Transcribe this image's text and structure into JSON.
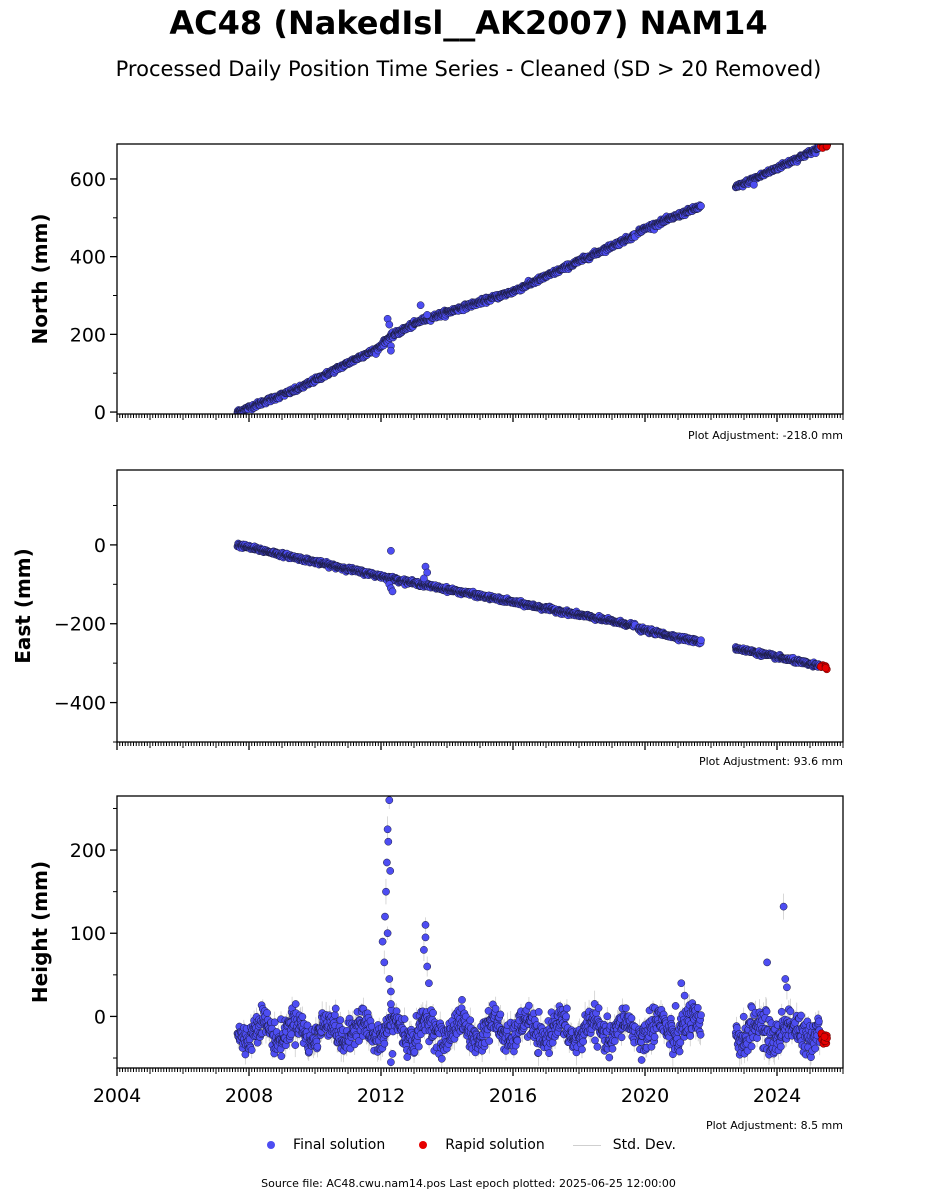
{
  "header": {
    "title": "AC48 (NakedIsl__AK2007) NAM14",
    "subtitle": "Processed Daily Position Time Series - Cleaned (SD > 20 Removed)"
  },
  "adjustments": {
    "north": "Plot Adjustment: -218.0 mm",
    "east": "Plot Adjustment: 93.6 mm",
    "height": "Plot Adjustment: 8.5 mm"
  },
  "legend": {
    "final": "Final solution",
    "rapid": "Rapid solution",
    "std": "Std. Dev."
  },
  "footer": "Source file: AC48.cwu.nam14.pos  Last epoch plotted: 2025-06-25 12:00:00",
  "colors": {
    "final": "#4d4df2",
    "final_edge": "#1a1a3a",
    "rapid": "#e60000",
    "std": "#cfcfcf",
    "axis": "#000000"
  },
  "chart_data": [
    {
      "type": "scatter",
      "ylabel": "North (mm)",
      "xlim": [
        2004.0,
        2026.0
      ],
      "ylim": [
        -5,
        690
      ],
      "yticks": [
        0,
        200,
        400,
        600
      ],
      "xticklabels_shown": false,
      "series": [
        {
          "name": "Final solution",
          "segments": [
            {
              "x": [
                2007.65,
                2009.5,
                2011.5,
                2011.85,
                2012.3,
                2013.2,
                2016,
                2019.7
              ],
              "y": [
                0,
                60,
                148,
                160,
                195,
                235,
                310,
                455
              ]
            },
            {
              "x": [
                2019.8,
                2021.7
              ],
              "y": [
                465,
                530
              ]
            },
            {
              "x": [
                2022.75,
                2025.3
              ],
              "y": [
                578,
                680
              ]
            }
          ]
        },
        {
          "name": "Rapid solution",
          "x": [
            2025.35,
            2025.48
          ],
          "y": [
            683,
            688
          ]
        }
      ],
      "outliers": {
        "x": [
          2012.2,
          2012.25,
          2012.3,
          2012.3,
          2013.2,
          2013.4,
          2023.3
        ],
        "y": [
          240,
          225,
          170,
          158,
          275,
          250,
          585
        ]
      }
    },
    {
      "type": "scatter",
      "ylabel": "East (mm)",
      "xlim": [
        2004.0,
        2026.0
      ],
      "ylim": [
        -500,
        190
      ],
      "yticks": [
        0,
        -200,
        -400
      ],
      "yticklabels": [
        "0",
        "−200",
        "−400"
      ],
      "xticklabels_shown": false,
      "series": [
        {
          "name": "Final solution",
          "segments": [
            {
              "x": [
                2007.65,
                2012.3,
                2019.7
              ],
              "y": [
                0,
                -85,
                -205
              ]
            },
            {
              "x": [
                2019.8,
                2021.7
              ],
              "y": [
                -213,
                -247
              ]
            },
            {
              "x": [
                2022.75,
                2025.3
              ],
              "y": [
                -262,
                -308
              ]
            }
          ]
        },
        {
          "name": "Rapid solution",
          "x": [
            2025.35,
            2025.48
          ],
          "y": [
            -309,
            -311
          ]
        }
      ],
      "outliers": {
        "x": [
          2012.3,
          2012.25,
          2012.3,
          2012.35,
          2013.35,
          2013.4,
          2013.3
        ],
        "y": [
          -15,
          -100,
          -110,
          -118,
          -55,
          -70,
          -85
        ]
      }
    },
    {
      "type": "scatter",
      "ylabel": "Height (mm)",
      "xlabel": "",
      "xlim": [
        2004.0,
        2026.0
      ],
      "ylim": [
        -62,
        265
      ],
      "yticks": [
        0,
        100,
        200
      ],
      "xticks": [
        2004,
        2008,
        2012,
        2016,
        2020,
        2024
      ],
      "xticklabels": [
        "2004",
        "2008",
        "2012",
        "2016",
        "2020",
        "2024"
      ],
      "series": [
        {
          "name": "Final solution",
          "segments": [
            {
              "x0": 2007.65,
              "x1": 2019.7,
              "mean": -17,
              "amp": 13,
              "noise": 9
            },
            {
              "x0": 2019.8,
              "x1": 2021.7,
              "mean": -15,
              "amp": 12,
              "noise": 11
            },
            {
              "x0": 2022.75,
              "x1": 2025.3,
              "mean": -18,
              "amp": 10,
              "noise": 11
            }
          ]
        },
        {
          "name": "Rapid solution",
          "x": [
            2025.35,
            2025.4,
            2025.45,
            2025.48
          ],
          "y": [
            -22,
            -28,
            -32,
            -25
          ]
        }
      ],
      "outliers": {
        "x": [
          2012.05,
          2012.1,
          2012.12,
          2012.15,
          2012.18,
          2012.2,
          2012.22,
          2012.25,
          2012.28,
          2012.2,
          2012.25,
          2012.3,
          2012.3,
          2013.3,
          2013.35,
          2013.4,
          2013.45,
          2013.35,
          2021.1,
          2021.2,
          2023.7,
          2024.2,
          2024.25,
          2024.3,
          2012.35,
          2012.3
        ],
        "y": [
          90,
          65,
          120,
          150,
          185,
          225,
          210,
          260,
          175,
          100,
          45,
          30,
          15,
          80,
          95,
          60,
          40,
          110,
          40,
          25,
          65,
          132,
          45,
          35,
          -45,
          -55
        ]
      }
    }
  ]
}
